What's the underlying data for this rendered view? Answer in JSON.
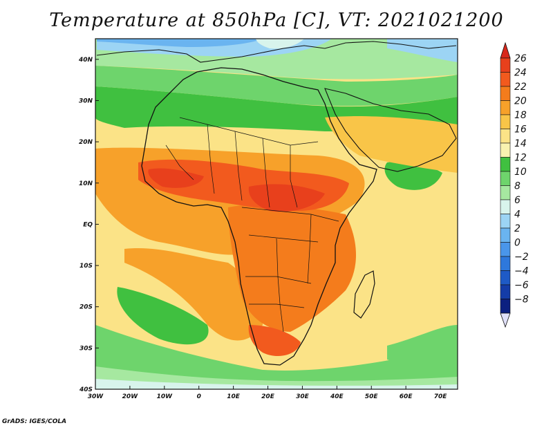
{
  "title": "Temperature at 850hPa [C], VT: 2021021200",
  "credit": "GrADS: IGES/COLA",
  "map": {
    "lon_range": [
      -30,
      75
    ],
    "lat_range": [
      -40,
      45
    ],
    "x_ticks": [
      {
        "lon": -30,
        "label": "30W"
      },
      {
        "lon": -20,
        "label": "20W"
      },
      {
        "lon": -10,
        "label": "10W"
      },
      {
        "lon": 0,
        "label": "0"
      },
      {
        "lon": 10,
        "label": "10E"
      },
      {
        "lon": 20,
        "label": "20E"
      },
      {
        "lon": 30,
        "label": "30E"
      },
      {
        "lon": 40,
        "label": "40E"
      },
      {
        "lon": 50,
        "label": "50E"
      },
      {
        "lon": 60,
        "label": "60E"
      },
      {
        "lon": 70,
        "label": "70E"
      }
    ],
    "y_ticks": [
      {
        "lat": 40,
        "label": "40N"
      },
      {
        "lat": 30,
        "label": "30N"
      },
      {
        "lat": 20,
        "label": "20N"
      },
      {
        "lat": 10,
        "label": "10N"
      },
      {
        "lat": 0,
        "label": "EQ"
      },
      {
        "lat": -10,
        "label": "10S"
      },
      {
        "lat": -20,
        "label": "20S"
      },
      {
        "lat": -30,
        "label": "30S"
      },
      {
        "lat": -40,
        "label": "40S"
      }
    ]
  },
  "colorbar": {
    "levels": [
      {
        "label": "26",
        "color": "#e8401c"
      },
      {
        "label": "24",
        "color": "#f25a1e"
      },
      {
        "label": "22",
        "color": "#f47c1c"
      },
      {
        "label": "20",
        "color": "#f7a12a"
      },
      {
        "label": "18",
        "color": "#f9c548"
      },
      {
        "label": "16",
        "color": "#fbe387"
      },
      {
        "label": "14",
        "color": "#f8f2b0"
      },
      {
        "label": "12",
        "color": "#40c040"
      },
      {
        "label": "10",
        "color": "#6ed46c"
      },
      {
        "label": "8",
        "color": "#a6e8a0"
      },
      {
        "label": "6",
        "color": "#d8f4ec"
      },
      {
        "label": "4",
        "color": "#9cd4f4"
      },
      {
        "label": "2",
        "color": "#6ab4f0"
      },
      {
        "label": "0",
        "color": "#4a96ea"
      },
      {
        "label": "−2",
        "color": "#2e78dc"
      },
      {
        "label": "−4",
        "color": "#1e5ac6"
      },
      {
        "label": "−6",
        "color": "#143ca8"
      },
      {
        "label": "−8",
        "color": "#0c2080"
      }
    ],
    "top_cap_color": "#d8281c",
    "bottom_cap_color": "#e0e0f8"
  },
  "colors": {
    "hot": "#e8401c",
    "warm": "#f47c1c",
    "mild": "#fbe387",
    "green": "#40c040",
    "cold": "#2e78dc"
  }
}
